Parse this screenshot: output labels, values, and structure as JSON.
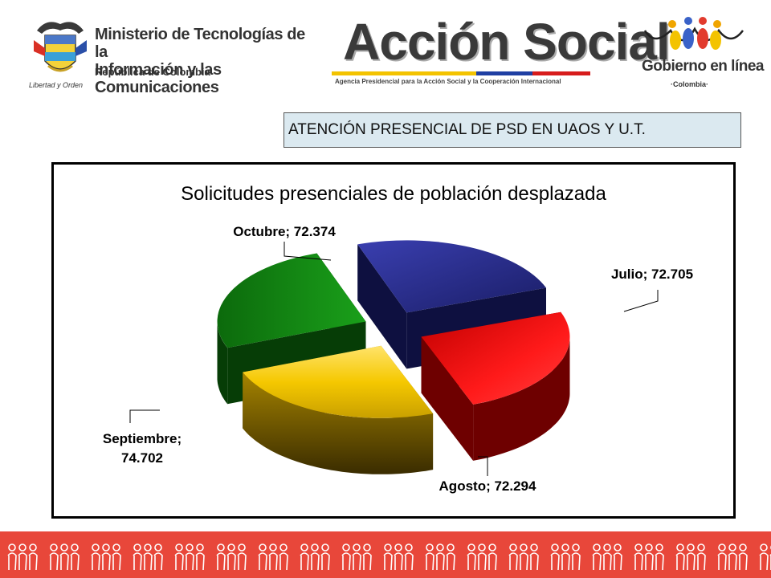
{
  "header": {
    "ministry": {
      "line1": "Ministerio de Tecnologías de la",
      "line2": "Información y las Comunicaciones",
      "line3": "República de Colombia",
      "motto": "Libertad y Orden"
    },
    "accion_social": {
      "title": "Acción Social",
      "subtitle": "Agencia Presidencial para la Acción Social y la Cooperación Internacional"
    },
    "gobierno": {
      "title": "Gobierno en línea",
      "subtitle": "·Colombia·"
    }
  },
  "section_title": "ATENCIÓN PRESENCIAL DE PSD EN UAOS Y U.T.",
  "chart_data": {
    "type": "pie",
    "title": "Solicitudes presenciales de población desplazada",
    "slices": [
      {
        "label": "Julio",
        "value": 72705,
        "value_text": "72.705",
        "color": "#ff1a1a"
      },
      {
        "label": "Agosto",
        "value": 72294,
        "value_text": "72.294",
        "color": "#f5c800"
      },
      {
        "label": "Septiembre",
        "value": 74702,
        "value_text": "74.702",
        "color": "#118a11"
      },
      {
        "label": "Octubre",
        "value": 72374,
        "value_text": "72.374",
        "color": "#2b2f8f"
      }
    ],
    "exploded": true,
    "three_d": true
  },
  "colors": {
    "section_bg": "#dbe9f0",
    "footer_bg": "#e8473a"
  }
}
